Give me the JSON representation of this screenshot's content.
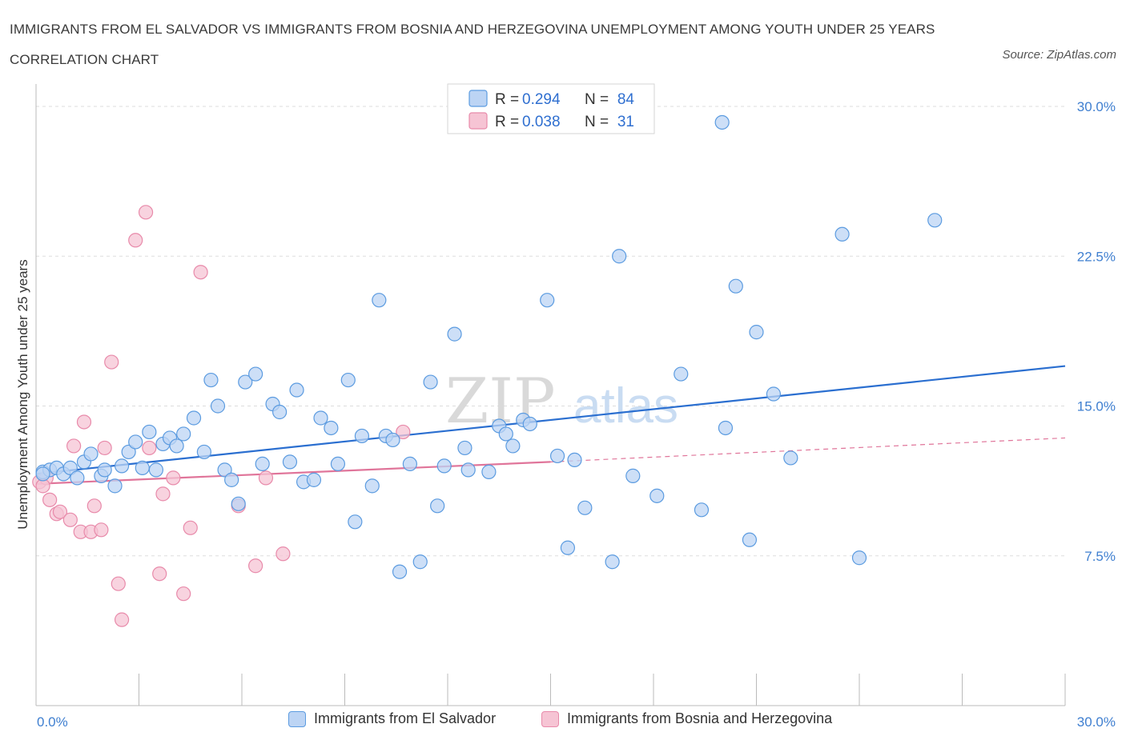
{
  "title": "IMMIGRANTS FROM EL SALVADOR VS IMMIGRANTS FROM BOSNIA AND HERZEGOVINA UNEMPLOYMENT AMONG YOUTH UNDER 25 YEARS CORRELATION CHART",
  "source": "Source: ZipAtlas.com",
  "watermark": "ZIPatlas",
  "colors": {
    "blue": "#5b9be0",
    "blue_fill": "#bcd4f4",
    "blue_line": "#2b6fd0",
    "pink": "#e88aaa",
    "pink_fill": "#f6c4d4",
    "pink_line": "#e0759a",
    "tick_text": "#3f7fd0",
    "grid": "#dddddd"
  },
  "legend": {
    "r_label": "R =",
    "n_label": "N =",
    "rows": [
      {
        "r": "0.294",
        "n": "84"
      },
      {
        "r": "0.038",
        "n": "31"
      }
    ]
  },
  "chart_data": {
    "type": "scatter",
    "title": "IMMIGRANTS FROM EL SALVADOR VS IMMIGRANTS FROM BOSNIA AND HERZEGOVINA UNEMPLOYMENT AMONG YOUTH UNDER 25 YEARS CORRELATION CHART",
    "xlabel": "",
    "ylabel": "Unemployment Among Youth under 25 years",
    "xlim": [
      0,
      30
    ],
    "ylim": [
      0,
      30
    ],
    "x_tick_labels": [
      "0.0%",
      "30.0%"
    ],
    "y_ticks": [
      7.5,
      15.0,
      22.5,
      30.0
    ],
    "y_tick_labels": [
      "7.5%",
      "15.0%",
      "22.5%",
      "30.0%"
    ],
    "grid": true,
    "legend_position": "top-center",
    "series": [
      {
        "name": "Immigrants from El Salvador",
        "color": "#5b9be0",
        "trend": {
          "x": [
            0,
            30
          ],
          "y": [
            11.6,
            17.0
          ],
          "style": "solid"
        },
        "points": [
          [
            0.2,
            11.7
          ],
          [
            0.4,
            11.8
          ],
          [
            0.6,
            11.9
          ],
          [
            0.8,
            11.6
          ],
          [
            1.0,
            11.9
          ],
          [
            1.2,
            11.4
          ],
          [
            1.4,
            12.2
          ],
          [
            1.6,
            12.6
          ],
          [
            1.9,
            11.5
          ],
          [
            2.0,
            11.8
          ],
          [
            2.3,
            11.0
          ],
          [
            2.5,
            12.0
          ],
          [
            2.7,
            12.7
          ],
          [
            2.9,
            13.2
          ],
          [
            3.1,
            11.9
          ],
          [
            3.3,
            13.7
          ],
          [
            3.5,
            11.8
          ],
          [
            3.7,
            13.1
          ],
          [
            3.9,
            13.4
          ],
          [
            4.1,
            13.0
          ],
          [
            4.3,
            13.6
          ],
          [
            4.6,
            14.4
          ],
          [
            4.9,
            12.7
          ],
          [
            5.1,
            16.3
          ],
          [
            5.3,
            15.0
          ],
          [
            5.5,
            11.8
          ],
          [
            5.7,
            11.3
          ],
          [
            5.9,
            10.1
          ],
          [
            6.1,
            16.2
          ],
          [
            6.4,
            16.6
          ],
          [
            6.6,
            12.1
          ],
          [
            6.9,
            15.1
          ],
          [
            7.1,
            14.7
          ],
          [
            7.4,
            12.2
          ],
          [
            7.6,
            15.8
          ],
          [
            7.8,
            11.2
          ],
          [
            8.1,
            11.3
          ],
          [
            8.3,
            14.4
          ],
          [
            8.6,
            13.9
          ],
          [
            8.8,
            12.1
          ],
          [
            9.1,
            16.3
          ],
          [
            9.3,
            9.2
          ],
          [
            9.5,
            13.5
          ],
          [
            9.8,
            11.0
          ],
          [
            10.0,
            20.3
          ],
          [
            10.2,
            13.5
          ],
          [
            10.4,
            13.3
          ],
          [
            10.6,
            6.7
          ],
          [
            10.9,
            12.1
          ],
          [
            11.2,
            7.2
          ],
          [
            11.5,
            16.2
          ],
          [
            11.7,
            10.0
          ],
          [
            11.9,
            12.0
          ],
          [
            12.2,
            18.6
          ],
          [
            12.5,
            12.9
          ],
          [
            12.6,
            11.8
          ],
          [
            13.2,
            11.7
          ],
          [
            13.5,
            14.0
          ],
          [
            13.7,
            13.6
          ],
          [
            13.9,
            13.0
          ],
          [
            14.2,
            14.3
          ],
          [
            14.4,
            14.1
          ],
          [
            14.9,
            20.3
          ],
          [
            15.2,
            12.5
          ],
          [
            15.5,
            7.9
          ],
          [
            15.7,
            12.3
          ],
          [
            16.0,
            9.9
          ],
          [
            16.8,
            7.2
          ],
          [
            17.0,
            22.5
          ],
          [
            17.4,
            11.5
          ],
          [
            18.1,
            10.5
          ],
          [
            18.8,
            16.6
          ],
          [
            19.4,
            9.8
          ],
          [
            20.0,
            29.2
          ],
          [
            20.1,
            13.9
          ],
          [
            20.4,
            21.0
          ],
          [
            20.8,
            8.3
          ],
          [
            21.0,
            18.7
          ],
          [
            21.5,
            15.6
          ],
          [
            22.0,
            12.4
          ],
          [
            23.5,
            23.6
          ],
          [
            24.0,
            7.4
          ],
          [
            26.2,
            24.3
          ],
          [
            0.2,
            11.6
          ]
        ]
      },
      {
        "name": "Immigrants from Bosnia and Herzegovina",
        "color": "#e88aaa",
        "trend": {
          "x": [
            0,
            15.0
          ],
          "y": [
            11.1,
            12.2
          ],
          "style": "solid"
        },
        "trend_extension": {
          "x": [
            15.0,
            30
          ],
          "y": [
            12.2,
            13.4
          ],
          "style": "dashed"
        },
        "points": [
          [
            0.1,
            11.2
          ],
          [
            0.3,
            11.4
          ],
          [
            0.4,
            10.3
          ],
          [
            0.6,
            9.6
          ],
          [
            0.7,
            9.7
          ],
          [
            1.0,
            9.3
          ],
          [
            1.1,
            13.0
          ],
          [
            1.3,
            8.7
          ],
          [
            1.4,
            14.2
          ],
          [
            1.6,
            8.7
          ],
          [
            1.7,
            10.0
          ],
          [
            1.9,
            8.8
          ],
          [
            2.0,
            12.9
          ],
          [
            2.2,
            17.2
          ],
          [
            2.4,
            6.1
          ],
          [
            2.5,
            4.3
          ],
          [
            2.9,
            23.3
          ],
          [
            3.2,
            24.7
          ],
          [
            3.3,
            12.9
          ],
          [
            3.6,
            6.6
          ],
          [
            3.7,
            10.6
          ],
          [
            4.0,
            11.4
          ],
          [
            4.3,
            5.6
          ],
          [
            4.5,
            8.9
          ],
          [
            4.8,
            21.7
          ],
          [
            5.9,
            10.0
          ],
          [
            6.4,
            7.0
          ],
          [
            6.7,
            11.4
          ],
          [
            7.2,
            7.6
          ],
          [
            10.7,
            13.7
          ],
          [
            0.2,
            11.0
          ]
        ]
      }
    ]
  },
  "bottom_legend": [
    {
      "label": "Immigrants from El Salvador"
    },
    {
      "label": "Immigrants from Bosnia and Herzegovina"
    }
  ]
}
